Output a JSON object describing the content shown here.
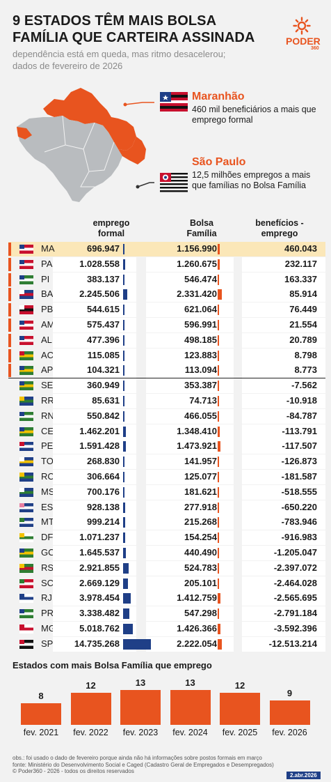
{
  "header": {
    "title": "9 ESTADOS TÊM MAIS BOLSA FAMÍLIA QUE CARTEIRA ASSINADA",
    "subtitle": "dependência está em queda, mas ritmo desacelerou; dados de fevereiro de 2026",
    "logo": "PODER",
    "logo_sub": "360"
  },
  "callouts": {
    "ma": {
      "title": "Maranhão",
      "text": "460 mil beneficiários a mais que emprego formal"
    },
    "sp": {
      "title": "São Paulo",
      "text": "12,5 milhões empregos a mais que famílias no Bolsa Família"
    }
  },
  "colors": {
    "accent": "#e8541f",
    "navy": "#1f3f87",
    "highlight": "#fbe7b8",
    "map_gray": "#b9bcbf"
  },
  "chart_data": [
    {
      "type": "table",
      "columns": [
        "emprego formal",
        "Bolsa Família",
        "benefícios - emprego"
      ],
      "rows": [
        {
          "uf": "MA",
          "emprego": "696.947",
          "bolsa": "1.156.990",
          "diff": "460.043",
          "emprego_n": 696947,
          "bolsa_n": 1156990,
          "flag": "maranhao-flag-icon"
        },
        {
          "uf": "PA",
          "emprego": "1.028.558",
          "bolsa": "1.260.675",
          "diff": "232.117",
          "emprego_n": 1028558,
          "bolsa_n": 1260675,
          "flag": "para-flag-icon"
        },
        {
          "uf": "PI",
          "emprego": "383.137",
          "bolsa": "546.474",
          "diff": "163.337",
          "emprego_n": 383137,
          "bolsa_n": 546474,
          "flag": "piaui-flag-icon"
        },
        {
          "uf": "BA",
          "emprego": "2.245.506",
          "bolsa": "2.331.420",
          "diff": "85.914",
          "emprego_n": 2245506,
          "bolsa_n": 2331420,
          "flag": "bahia-flag-icon"
        },
        {
          "uf": "PB",
          "emprego": "544.615",
          "bolsa": "621.064",
          "diff": "76.449",
          "emprego_n": 544615,
          "bolsa_n": 621064,
          "flag": "paraiba-flag-icon"
        },
        {
          "uf": "AM",
          "emprego": "575.437",
          "bolsa": "596.991",
          "diff": "21.554",
          "emprego_n": 575437,
          "bolsa_n": 596991,
          "flag": "amazonas-flag-icon"
        },
        {
          "uf": "AL",
          "emprego": "477.396",
          "bolsa": "498.185",
          "diff": "20.789",
          "emprego_n": 477396,
          "bolsa_n": 498185,
          "flag": "alagoas-flag-icon"
        },
        {
          "uf": "AC",
          "emprego": "115.085",
          "bolsa": "123.883",
          "diff": "8.798",
          "emprego_n": 115085,
          "bolsa_n": 123883,
          "flag": "acre-flag-icon"
        },
        {
          "uf": "AP",
          "emprego": "104.321",
          "bolsa": "113.094",
          "diff": "8.773",
          "emprego_n": 104321,
          "bolsa_n": 113094,
          "flag": "amapa-flag-icon"
        },
        {
          "uf": "SE",
          "emprego": "360.949",
          "bolsa": "353.387",
          "diff": "-7.562",
          "emprego_n": 360949,
          "bolsa_n": 353387,
          "flag": "sergipe-flag-icon"
        },
        {
          "uf": "RR",
          "emprego": "85.631",
          "bolsa": "74.713",
          "diff": "-10.918",
          "emprego_n": 85631,
          "bolsa_n": 74713,
          "flag": "roraima-flag-icon"
        },
        {
          "uf": "RN",
          "emprego": "550.842",
          "bolsa": "466.055",
          "diff": "-84.787",
          "emprego_n": 550842,
          "bolsa_n": 466055,
          "flag": "rio-grande-do-norte-flag-icon"
        },
        {
          "uf": "CE",
          "emprego": "1.462.201",
          "bolsa": "1.348.410",
          "diff": "-113.791",
          "emprego_n": 1462201,
          "bolsa_n": 1348410,
          "flag": "ceara-flag-icon"
        },
        {
          "uf": "PE",
          "emprego": "1.591.428",
          "bolsa": "1.473.921",
          "diff": "-117.507",
          "emprego_n": 1591428,
          "bolsa_n": 1473921,
          "flag": "pernambuco-flag-icon"
        },
        {
          "uf": "TO",
          "emprego": "268.830",
          "bolsa": "141.957",
          "diff": "-126.873",
          "emprego_n": 268830,
          "bolsa_n": 141957,
          "flag": "tocantins-flag-icon"
        },
        {
          "uf": "RO",
          "emprego": "306.664",
          "bolsa": "125.077",
          "diff": "-181.587",
          "emprego_n": 306664,
          "bolsa_n": 125077,
          "flag": "rondonia-flag-icon"
        },
        {
          "uf": "MS",
          "emprego": "700.176",
          "bolsa": "181.621",
          "diff": "-518.555",
          "emprego_n": 700176,
          "bolsa_n": 181621,
          "flag": "mato-grosso-do-sul-flag-icon"
        },
        {
          "uf": "ES",
          "emprego": "928.138",
          "bolsa": "277.918",
          "diff": "-650.220",
          "emprego_n": 928138,
          "bolsa_n": 277918,
          "flag": "espirito-santo-flag-icon"
        },
        {
          "uf": "MT",
          "emprego": "999.214",
          "bolsa": "215.268",
          "diff": "-783.946",
          "emprego_n": 999214,
          "bolsa_n": 215268,
          "flag": "mato-grosso-flag-icon"
        },
        {
          "uf": "DF",
          "emprego": "1.071.237",
          "bolsa": "154.254",
          "diff": "-916.983",
          "emprego_n": 1071237,
          "bolsa_n": 154254,
          "flag": "distrito-federal-flag-icon"
        },
        {
          "uf": "GO",
          "emprego": "1.645.537",
          "bolsa": "440.490",
          "diff": "-1.205.047",
          "emprego_n": 1645537,
          "bolsa_n": 440490,
          "flag": "goias-flag-icon"
        },
        {
          "uf": "RS",
          "emprego": "2.921.855",
          "bolsa": "524.783",
          "diff": "-2.397.072",
          "emprego_n": 2921855,
          "bolsa_n": 524783,
          "flag": "rio-grande-do-sul-flag-icon"
        },
        {
          "uf": "SC",
          "emprego": "2.669.129",
          "bolsa": "205.101",
          "diff": "-2.464.028",
          "emprego_n": 2669129,
          "bolsa_n": 205101,
          "flag": "santa-catarina-flag-icon"
        },
        {
          "uf": "RJ",
          "emprego": "3.978.454",
          "bolsa": "1.412.759",
          "diff": "-2.565.695",
          "emprego_n": 3978454,
          "bolsa_n": 1412759,
          "flag": "rio-de-janeiro-flag-icon"
        },
        {
          "uf": "PR",
          "emprego": "3.338.482",
          "bolsa": "547.298",
          "diff": "-2.791.184",
          "emprego_n": 3338482,
          "bolsa_n": 547298,
          "flag": "parana-flag-icon"
        },
        {
          "uf": "MG",
          "emprego": "5.018.762",
          "bolsa": "1.426.366",
          "diff": "-3.592.396",
          "emprego_n": 5018762,
          "bolsa_n": 1426366,
          "flag": "minas-gerais-flag-icon"
        },
        {
          "uf": "SP",
          "emprego": "14.735.268",
          "bolsa": "2.222.054",
          "diff": "-12.513.214",
          "emprego_n": 14735268,
          "bolsa_n": 2222054,
          "flag": "sao-paulo-flag-icon"
        }
      ]
    },
    {
      "type": "bar",
      "title": "Estados com mais Bolsa Família que emprego",
      "categories": [
        "fev. 2021",
        "fev. 2022",
        "fev. 2023",
        "fev. 2024",
        "fev. 2025",
        "fev. 2026"
      ],
      "values": [
        8,
        12,
        13,
        13,
        12,
        9
      ],
      "ylim": [
        0,
        13
      ]
    }
  ],
  "footer": {
    "obs": "obs.: foi usado o dado de fevereiro porque ainda não há informações sobre postos formais em março",
    "source": "fonte: Ministério do Desenvolvimento Social e Caged (Cadastro Geral de Empregados e Desempregados)",
    "copyright": "© Poder360 - 2026 - todos os direitos reservados",
    "date": "2.abr.2026"
  }
}
